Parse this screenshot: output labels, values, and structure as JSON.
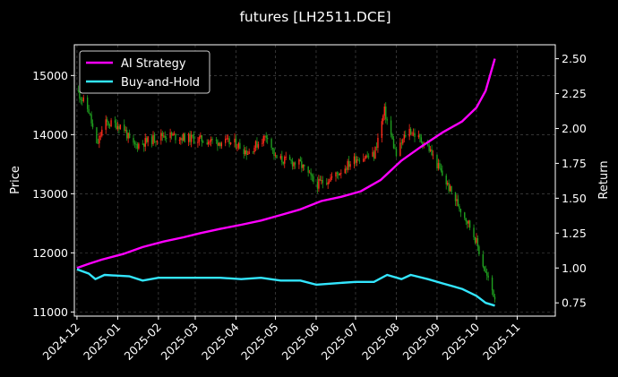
{
  "chart_data": {
    "type": "line",
    "title": "futures [LH2511.DCE]",
    "ylabel_left": "Price",
    "ylabel_right": "Return",
    "xlim": [
      "2024-11-29",
      "2025-11-30"
    ],
    "ylim_left": [
      10930,
      15520
    ],
    "ylim_right": [
      0.655,
      2.6
    ],
    "x_ticks": [
      "2024-12",
      "2025-01",
      "2025-02",
      "2025-03",
      "2025-04",
      "2025-05",
      "2025-06",
      "2025-07",
      "2025-08",
      "2025-09",
      "2025-10",
      "2025-11"
    ],
    "y_ticks_left": [
      11000,
      12000,
      13000,
      14000,
      15000
    ],
    "y_ticks_right": [
      0.75,
      1.0,
      1.25,
      1.5,
      1.75,
      2.0,
      2.25,
      2.5
    ],
    "grid": true,
    "legend_position": "top-left",
    "background": "#000000",
    "up_color": "#ff2a1a",
    "down_color": "#1fa01f",
    "series": [
      {
        "name": "AI Strategy",
        "axis": "right",
        "color": "#ff00ff",
        "points": [
          [
            "2024-12-01",
            1.0
          ],
          [
            "2024-12-10",
            1.03
          ],
          [
            "2024-12-20",
            1.06
          ],
          [
            "2025-01-05",
            1.1
          ],
          [
            "2025-01-20",
            1.15
          ],
          [
            "2025-02-05",
            1.19
          ],
          [
            "2025-02-20",
            1.22
          ],
          [
            "2025-03-05",
            1.25
          ],
          [
            "2025-03-20",
            1.28
          ],
          [
            "2025-04-05",
            1.31
          ],
          [
            "2025-04-20",
            1.34
          ],
          [
            "2025-05-05",
            1.38
          ],
          [
            "2025-05-20",
            1.42
          ],
          [
            "2025-06-05",
            1.48
          ],
          [
            "2025-06-20",
            1.51
          ],
          [
            "2025-07-05",
            1.55
          ],
          [
            "2025-07-20",
            1.63
          ],
          [
            "2025-08-05",
            1.77
          ],
          [
            "2025-08-20",
            1.87
          ],
          [
            "2025-09-05",
            1.97
          ],
          [
            "2025-09-20",
            2.05
          ],
          [
            "2025-10-01",
            2.15
          ],
          [
            "2025-10-08",
            2.27
          ],
          [
            "2025-10-15",
            2.5
          ]
        ]
      },
      {
        "name": "Buy-and-Hold",
        "axis": "right",
        "color": "#33e6ff",
        "points": [
          [
            "2024-12-01",
            0.99
          ],
          [
            "2024-12-10",
            0.96
          ],
          [
            "2024-12-15",
            0.92
          ],
          [
            "2024-12-22",
            0.95
          ],
          [
            "2025-01-10",
            0.94
          ],
          [
            "2025-01-20",
            0.91
          ],
          [
            "2025-02-01",
            0.93
          ],
          [
            "2025-02-15",
            0.93
          ],
          [
            "2025-03-01",
            0.93
          ],
          [
            "2025-03-20",
            0.93
          ],
          [
            "2025-04-05",
            0.92
          ],
          [
            "2025-04-20",
            0.93
          ],
          [
            "2025-05-05",
            0.91
          ],
          [
            "2025-05-20",
            0.91
          ],
          [
            "2025-06-01",
            0.88
          ],
          [
            "2025-06-15",
            0.89
          ],
          [
            "2025-07-01",
            0.9
          ],
          [
            "2025-07-15",
            0.9
          ],
          [
            "2025-07-25",
            0.95
          ],
          [
            "2025-08-05",
            0.92
          ],
          [
            "2025-08-12",
            0.95
          ],
          [
            "2025-08-25",
            0.92
          ],
          [
            "2025-09-05",
            0.89
          ],
          [
            "2025-09-20",
            0.85
          ],
          [
            "2025-10-01",
            0.8
          ],
          [
            "2025-10-08",
            0.75
          ],
          [
            "2025-10-15",
            0.73
          ]
        ]
      }
    ],
    "price_path": [
      [
        "2024-12-01",
        14750
      ],
      [
        "2024-12-10",
        14400
      ],
      [
        "2024-12-16",
        13800
      ],
      [
        "2024-12-22",
        14200
      ],
      [
        "2025-01-05",
        14150
      ],
      [
        "2025-01-12",
        13800
      ],
      [
        "2025-01-25",
        13900
      ],
      [
        "2025-02-05",
        14000
      ],
      [
        "2025-02-20",
        13950
      ],
      [
        "2025-03-10",
        13900
      ],
      [
        "2025-04-01",
        13850
      ],
      [
        "2025-04-10",
        13700
      ],
      [
        "2025-04-25",
        14000
      ],
      [
        "2025-05-01",
        13600
      ],
      [
        "2025-05-20",
        13500
      ],
      [
        "2025-06-01",
        13150
      ],
      [
        "2025-06-15",
        13300
      ],
      [
        "2025-07-01",
        13600
      ],
      [
        "2025-07-15",
        13650
      ],
      [
        "2025-07-23",
        14400
      ],
      [
        "2025-08-01",
        13650
      ],
      [
        "2025-08-10",
        14100
      ],
      [
        "2025-08-25",
        13800
      ],
      [
        "2025-09-10",
        13100
      ],
      [
        "2025-09-25",
        12500
      ],
      [
        "2025-09-30",
        12250
      ],
      [
        "2025-10-08",
        11650
      ],
      [
        "2025-10-15",
        11250
      ]
    ]
  },
  "legend": {
    "ai_label": "AI Strategy",
    "bh_label": "Buy-and-Hold"
  }
}
